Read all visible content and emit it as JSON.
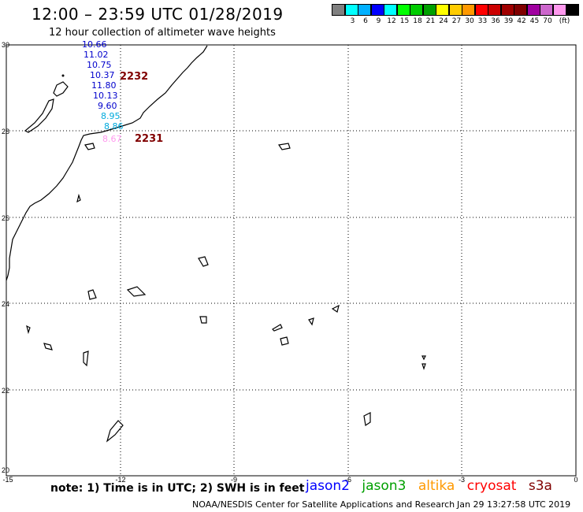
{
  "header": {
    "title": "12:00 – 23:59 UTC 01/28/2019",
    "subtitle": "12 hour collection of altimeter wave heights"
  },
  "color_scale": {
    "colors": [
      "#808080",
      "#00ffff",
      "#00b0ff",
      "#0000ff",
      "#00ffff",
      "#00ff00",
      "#00cc00",
      "#00a000",
      "#ffff00",
      "#ffcc00",
      "#ff9900",
      "#ff0000",
      "#cc0000",
      "#a00000",
      "#800000",
      "#a000a0",
      "#cc66cc",
      "#ff99ee",
      "#000000"
    ],
    "labels": [
      "3",
      "6",
      "9",
      "12",
      "15",
      "18",
      "21",
      "24",
      "27",
      "30",
      "33",
      "36",
      "39",
      "42",
      "45",
      "70"
    ],
    "unit": "(ft)"
  },
  "map": {
    "lat_ticks": [
      "30",
      "28",
      "26",
      "24",
      "22",
      "20"
    ],
    "lon_ticks": [
      "-15",
      "-12",
      "-9",
      "-6",
      "-3",
      "0"
    ],
    "wave_readings": [
      {
        "value": "10.66",
        "color": "#0000cc"
      },
      {
        "value": "11.02",
        "color": "#0000cc"
      },
      {
        "value": "10.75",
        "color": "#0000cc"
      },
      {
        "value": "10.37",
        "color": "#0000cc"
      },
      {
        "value": "11.80",
        "color": "#0000cc"
      },
      {
        "value": "10.13",
        "color": "#0000cc"
      },
      {
        "value": "9.60",
        "color": "#0000cc"
      },
      {
        "value": "8.95",
        "color": "#00aadd"
      },
      {
        "value": "8.86",
        "color": "#00aadd"
      },
      {
        "value": "8.67",
        "color": "#ff99ee"
      }
    ],
    "pass_labels": [
      {
        "text": "2232",
        "color": "#800000"
      },
      {
        "text": "2231",
        "color": "#800000"
      }
    ]
  },
  "footer": {
    "note": "note: 1) Time is in UTC; 2) SWH is in feet",
    "satellites": [
      {
        "name": "jason2",
        "color": "#0000ff"
      },
      {
        "name": "jason3",
        "color": "#00a000"
      },
      {
        "name": "altika",
        "color": "#ff9900"
      },
      {
        "name": "cryosat",
        "color": "#ff0000"
      },
      {
        "name": "s3a",
        "color": "#800000"
      }
    ],
    "credit": "NOAA/NESDIS Center for Satellite Applications and Research",
    "timestamp": "Jan 29 13:27:58 UTC 2019"
  }
}
